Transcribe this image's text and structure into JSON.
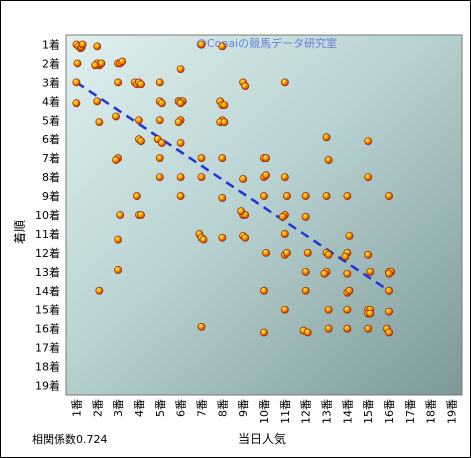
{
  "chart_data": {
    "type": "scatter",
    "title": "",
    "watermark": "@Conaiの競馬データ研究室",
    "xlabel": "当日人気",
    "ylabel": "着順",
    "correlation_label": "相関係数0.724",
    "x_ticks": [
      "1番",
      "2番",
      "3番",
      "4番",
      "5番",
      "6番",
      "7番",
      "8番",
      "9番",
      "10番",
      "11番",
      "12番",
      "13番",
      "14番",
      "15番",
      "16番",
      "17番",
      "18番",
      "19番"
    ],
    "y_ticks": [
      "1着",
      "2着",
      "3着",
      "4着",
      "5着",
      "6着",
      "7着",
      "8着",
      "9着",
      "10着",
      "11着",
      "12着",
      "13着",
      "14着",
      "15着",
      "16着",
      "17着",
      "18着",
      "19着"
    ],
    "xlim": [
      0.5,
      19.5
    ],
    "ylim": [
      0.5,
      19.5
    ],
    "y_inverted": true,
    "grid": "none",
    "background": "gradient teal-gray",
    "marker_color": "#ff6a00",
    "trendline": {
      "style": "dashed",
      "color": "#1f35d6",
      "x": [
        1,
        16
      ],
      "y": [
        3.0,
        14.0
      ]
    },
    "points": [
      [
        1.0,
        1.0
      ],
      [
        1.1,
        1.1
      ],
      [
        1.2,
        1.2
      ],
      [
        1.25,
        1.15
      ],
      [
        1.3,
        1.0
      ],
      [
        1.05,
        2.0
      ],
      [
        1.0,
        3.0
      ],
      [
        1.0,
        4.1
      ],
      [
        2.0,
        1.1
      ],
      [
        2.0,
        2.0
      ],
      [
        2.1,
        2.1
      ],
      [
        2.2,
        2.0
      ],
      [
        1.9,
        2.1
      ],
      [
        2.0,
        4.0
      ],
      [
        2.1,
        5.1
      ],
      [
        2.1,
        14.0
      ],
      [
        3.0,
        2.0
      ],
      [
        3.1,
        2.0
      ],
      [
        3.2,
        1.9
      ],
      [
        3.0,
        3.0
      ],
      [
        2.9,
        4.8
      ],
      [
        3.0,
        7.0
      ],
      [
        2.9,
        7.1
      ],
      [
        3.1,
        10.0
      ],
      [
        3.0,
        11.3
      ],
      [
        3.0,
        12.9
      ],
      [
        3.8,
        3.0
      ],
      [
        3.9,
        3.1
      ],
      [
        4.0,
        3.0
      ],
      [
        4.1,
        3.1
      ],
      [
        4.0,
        5.0
      ],
      [
        4.0,
        6.0
      ],
      [
        4.1,
        6.1
      ],
      [
        3.9,
        9.0
      ],
      [
        4.0,
        10.0
      ],
      [
        4.1,
        10.0
      ],
      [
        5.0,
        3.0
      ],
      [
        5.0,
        4.0
      ],
      [
        5.1,
        4.1
      ],
      [
        5.0,
        5.0
      ],
      [
        4.9,
        6.0
      ],
      [
        5.0,
        7.0
      ],
      [
        5.0,
        8.0
      ],
      [
        5.1,
        6.2
      ],
      [
        6.0,
        2.3
      ],
      [
        5.9,
        4.0
      ],
      [
        6.0,
        4.0
      ],
      [
        6.1,
        4.0
      ],
      [
        6.0,
        4.1
      ],
      [
        6.0,
        5.0
      ],
      [
        5.9,
        5.1
      ],
      [
        6.0,
        8.0
      ],
      [
        6.0,
        9.0
      ],
      [
        6.0,
        6.2
      ],
      [
        7.0,
        1.0
      ],
      [
        7.0,
        7.0
      ],
      [
        7.0,
        8.0
      ],
      [
        6.9,
        11.0
      ],
      [
        7.0,
        11.2
      ],
      [
        7.1,
        11.3
      ],
      [
        7.0,
        15.9
      ],
      [
        8.0,
        1.1
      ],
      [
        7.9,
        4.0
      ],
      [
        8.0,
        4.2
      ],
      [
        8.1,
        4.2
      ],
      [
        8.0,
        5.0
      ],
      [
        7.9,
        5.1
      ],
      [
        8.1,
        5.1
      ],
      [
        8.0,
        7.0
      ],
      [
        8.0,
        9.1
      ],
      [
        8.0,
        11.2
      ],
      [
        9.0,
        3.0
      ],
      [
        9.1,
        3.2
      ],
      [
        9.0,
        8.1
      ],
      [
        9.0,
        10.0
      ],
      [
        9.1,
        10.0
      ],
      [
        9.0,
        11.1
      ],
      [
        9.1,
        11.2
      ],
      [
        8.9,
        9.8
      ],
      [
        10.0,
        7.0
      ],
      [
        10.1,
        7.0
      ],
      [
        10.0,
        8.0
      ],
      [
        10.1,
        7.9
      ],
      [
        10.0,
        9.0
      ],
      [
        10.1,
        12.0
      ],
      [
        10.0,
        14.0
      ],
      [
        10.0,
        16.2
      ],
      [
        11.0,
        3.0
      ],
      [
        11.0,
        8.0
      ],
      [
        11.1,
        9.0
      ],
      [
        11.0,
        10.0
      ],
      [
        10.9,
        10.1
      ],
      [
        11.0,
        11.0
      ],
      [
        11.0,
        12.1
      ],
      [
        11.1,
        12.0
      ],
      [
        11.0,
        15.0
      ],
      [
        12.0,
        9.0
      ],
      [
        12.0,
        10.1
      ],
      [
        12.1,
        12.0
      ],
      [
        12.0,
        13.0
      ],
      [
        12.0,
        14.0
      ],
      [
        11.9,
        16.1
      ],
      [
        12.1,
        16.2
      ],
      [
        13.0,
        5.9
      ],
      [
        13.1,
        7.1
      ],
      [
        13.0,
        9.0
      ],
      [
        13.0,
        12.0
      ],
      [
        13.1,
        12.1
      ],
      [
        13.0,
        13.0
      ],
      [
        12.9,
        13.1
      ],
      [
        13.1,
        15.0
      ],
      [
        13.1,
        16.0
      ],
      [
        14.0,
        9.0
      ],
      [
        14.1,
        11.1
      ],
      [
        14.0,
        12.0
      ],
      [
        13.9,
        12.2
      ],
      [
        14.0,
        13.1
      ],
      [
        14.0,
        14.1
      ],
      [
        14.1,
        14.0
      ],
      [
        14.0,
        15.0
      ],
      [
        14.0,
        16.0
      ],
      [
        15.0,
        6.1
      ],
      [
        15.0,
        8.0
      ],
      [
        15.0,
        12.1
      ],
      [
        15.1,
        13.0
      ],
      [
        15.0,
        15.0
      ],
      [
        15.1,
        15.0
      ],
      [
        15.0,
        15.2
      ],
      [
        15.0,
        16.0
      ],
      [
        15.1,
        15.2
      ],
      [
        16.0,
        9.0
      ],
      [
        16.0,
        13.0
      ],
      [
        16.1,
        13.0
      ],
      [
        16.0,
        13.1
      ],
      [
        16.0,
        14.0
      ],
      [
        16.0,
        15.1
      ],
      [
        15.9,
        16.0
      ],
      [
        16.0,
        16.2
      ]
    ]
  }
}
